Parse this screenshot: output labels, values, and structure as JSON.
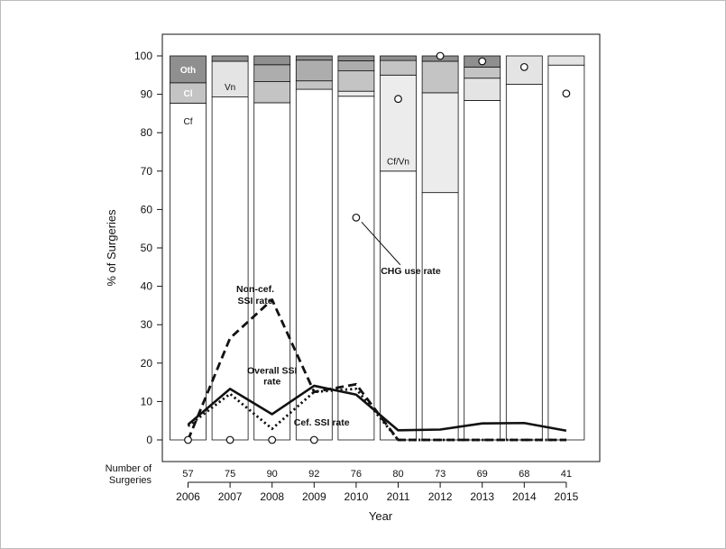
{
  "chart_data": {
    "type": "bar",
    "xlabel": "Year",
    "ylabel": "% of Surgeries",
    "ylim": [
      0,
      105
    ],
    "yticks": [
      0,
      10,
      20,
      30,
      40,
      50,
      60,
      70,
      80,
      90,
      100
    ],
    "categories": [
      "2006",
      "2007",
      "2008",
      "2009",
      "2010",
      "2011",
      "2012",
      "2013",
      "2014",
      "2015"
    ],
    "number_of_surgeries_label": "Number of\nSurgeries",
    "number_of_surgeries": [
      57,
      75,
      90,
      92,
      76,
      80,
      73,
      69,
      68,
      41
    ],
    "stacked_series": [
      {
        "key": "Cf",
        "values": [
          87.7,
          89.3,
          87.8,
          91.3,
          89.5,
          70.0,
          64.4,
          88.4,
          92.6,
          97.6
        ],
        "color": "#ffffff"
      },
      {
        "key": "Cf/Vn",
        "values": [
          0,
          0,
          0,
          0,
          1.3,
          25.0,
          26.0,
          0,
          0,
          0
        ],
        "color": "#ececec"
      },
      {
        "key": "Vn",
        "values": [
          0,
          9.3,
          0,
          0,
          0,
          0,
          0,
          5.8,
          7.4,
          2.4
        ],
        "color": "#e4e4e4"
      },
      {
        "key": "Cl",
        "values": [
          5.3,
          0,
          5.5,
          2.2,
          5.3,
          3.8,
          8.2,
          2.9,
          0,
          0
        ],
        "color": "#c4c4c4"
      },
      {
        "key": "Misc",
        "values": [
          0,
          0,
          4.4,
          5.4,
          2.6,
          0,
          0,
          0,
          0,
          0
        ],
        "color": "#adadad"
      },
      {
        "key": "Oth",
        "values": [
          7.0,
          1.4,
          2.3,
          1.1,
          1.3,
          1.2,
          1.4,
          2.9,
          0,
          0
        ],
        "color": "#8f8f8f"
      }
    ],
    "segment_labels": [
      {
        "text": "Oth",
        "bar": 0,
        "y": 96.5,
        "color": "#ffffff"
      },
      {
        "text": "Cl",
        "bar": 0,
        "y": 90.4,
        "color": "#ffffff"
      },
      {
        "text": "Cf",
        "bar": 0,
        "y": 83.1,
        "color": "#111111"
      },
      {
        "text": "Vn",
        "bar": 1,
        "y": 92.0,
        "color": "#111111"
      },
      {
        "text": "Cf/Vn",
        "bar": 5,
        "y": 72.6,
        "color": "#111111"
      }
    ],
    "line_series": [
      {
        "key": "overall",
        "style": "solid",
        "values": [
          4.0,
          13.3,
          6.7,
          14.1,
          11.8,
          2.5,
          2.7,
          4.3,
          4.4,
          2.4
        ]
      },
      {
        "key": "cef",
        "style": "dotted",
        "values": [
          3.6,
          12.0,
          2.9,
          12.5,
          13.3,
          0,
          0,
          0,
          0,
          0
        ]
      },
      {
        "key": "noncef",
        "style": "dashed",
        "values": [
          0,
          26.5,
          36.5,
          12.5,
          14.5,
          0,
          0,
          0,
          0,
          0
        ]
      }
    ],
    "chg_use_rate": {
      "values": [
        0,
        0,
        0,
        0,
        57.9,
        88.8,
        100,
        98.6,
        97.1,
        90.2
      ]
    },
    "annotations": [
      {
        "text": "Non-cef.",
        "at": [
          1.6,
          38.5
        ]
      },
      {
        "text": "SSI rate",
        "at": [
          1.6,
          35.5
        ]
      },
      {
        "text": "Overall SSI",
        "at": [
          2.0,
          17.3
        ]
      },
      {
        "text": "rate",
        "at": [
          2.0,
          14.4
        ]
      },
      {
        "text": "Cef. SSI rate",
        "at": [
          3.18,
          3.7
        ]
      },
      {
        "text": "CHG use rate",
        "at": [
          5.3,
          43.2
        ]
      }
    ]
  }
}
